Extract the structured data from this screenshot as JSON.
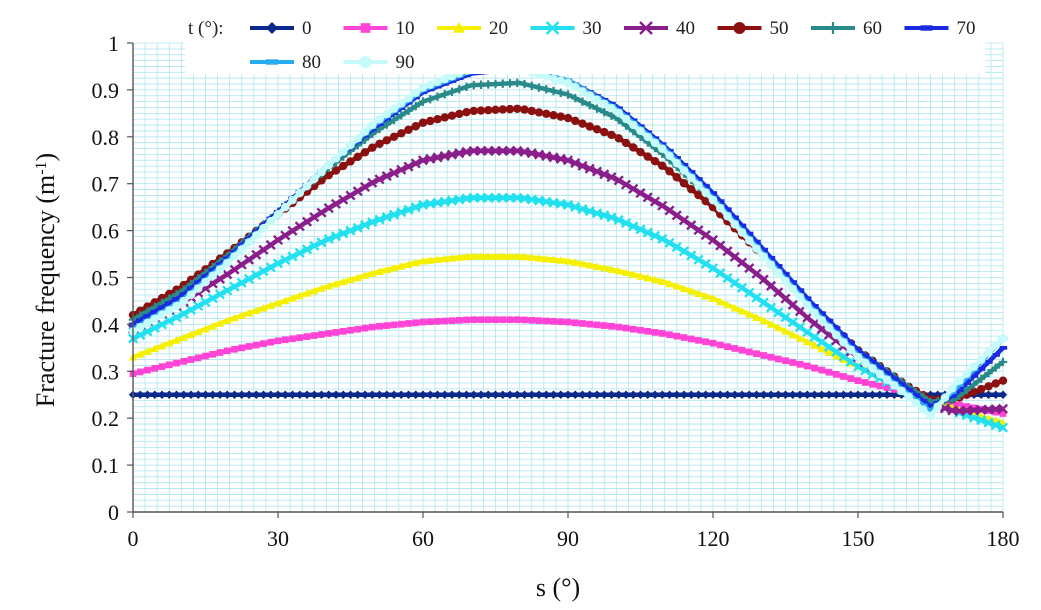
{
  "chart_data": {
    "type": "line",
    "xlabel": "s (°)",
    "ylabel_main": "Fracture frequency (m",
    "ylabel_sup": "-1",
    "ylabel_tail": ")",
    "xlim": [
      0,
      180
    ],
    "ylim": [
      0,
      1
    ],
    "xticks": [
      0,
      30,
      60,
      90,
      120,
      150,
      180
    ],
    "yticks": [
      0,
      0.1,
      0.2,
      0.3,
      0.4,
      0.5,
      0.6,
      0.7,
      0.8,
      0.9,
      1
    ],
    "grid": true,
    "legend_title": "t (°):",
    "legend_position": "top",
    "x": [
      0,
      10,
      20,
      30,
      40,
      50,
      60,
      70,
      80,
      90,
      100,
      110,
      120,
      130,
      140,
      150,
      160,
      165,
      170,
      180
    ],
    "series": [
      {
        "name": "0",
        "color": "#0a2a8a",
        "marker": "diamond",
        "values": [
          0.25,
          0.25,
          0.25,
          0.25,
          0.25,
          0.25,
          0.25,
          0.25,
          0.25,
          0.25,
          0.25,
          0.25,
          0.25,
          0.25,
          0.25,
          0.25,
          0.25,
          0.25,
          0.25,
          0.25
        ]
      },
      {
        "name": "10",
        "color": "#ff44d6",
        "marker": "square",
        "values": [
          0.295,
          0.32,
          0.345,
          0.365,
          0.38,
          0.395,
          0.405,
          0.41,
          0.41,
          0.405,
          0.395,
          0.38,
          0.36,
          0.335,
          0.31,
          0.28,
          0.255,
          0.24,
          0.23,
          0.21
        ]
      },
      {
        "name": "20",
        "color": "#f5f000",
        "marker": "triangle",
        "values": [
          0.33,
          0.37,
          0.41,
          0.445,
          0.48,
          0.51,
          0.535,
          0.545,
          0.545,
          0.535,
          0.515,
          0.49,
          0.455,
          0.41,
          0.36,
          0.31,
          0.26,
          0.24,
          0.22,
          0.19
        ]
      },
      {
        "name": "30",
        "color": "#22e0f0",
        "marker": "x",
        "values": [
          0.37,
          0.42,
          0.475,
          0.53,
          0.58,
          0.62,
          0.655,
          0.67,
          0.67,
          0.655,
          0.625,
          0.58,
          0.52,
          0.45,
          0.38,
          0.31,
          0.255,
          0.23,
          0.215,
          0.18
        ]
      },
      {
        "name": "40",
        "color": "#8a1e8a",
        "marker": "x",
        "values": [
          0.39,
          0.445,
          0.51,
          0.58,
          0.645,
          0.705,
          0.75,
          0.77,
          0.77,
          0.75,
          0.71,
          0.65,
          0.58,
          0.5,
          0.41,
          0.33,
          0.26,
          0.23,
          0.215,
          0.22
        ]
      },
      {
        "name": "50",
        "color": "#8b1010",
        "marker": "circle",
        "values": [
          0.42,
          0.48,
          0.555,
          0.635,
          0.715,
          0.78,
          0.83,
          0.855,
          0.86,
          0.84,
          0.8,
          0.735,
          0.65,
          0.55,
          0.445,
          0.345,
          0.27,
          0.24,
          0.24,
          0.28
        ]
      },
      {
        "name": "60",
        "color": "#2a8a8a",
        "marker": "plus",
        "values": [
          0.41,
          0.47,
          0.55,
          0.64,
          0.73,
          0.81,
          0.875,
          0.91,
          0.915,
          0.89,
          0.84,
          0.76,
          0.665,
          0.555,
          0.445,
          0.345,
          0.27,
          0.235,
          0.24,
          0.32
        ]
      },
      {
        "name": "70",
        "color": "#1a2ae0",
        "marker": "dash",
        "values": [
          0.4,
          0.46,
          0.545,
          0.64,
          0.735,
          0.82,
          0.895,
          0.935,
          0.945,
          0.92,
          0.865,
          0.78,
          0.68,
          0.565,
          0.45,
          0.345,
          0.265,
          0.225,
          0.25,
          0.35
        ]
      },
      {
        "name": "80",
        "color": "#2aaaf0",
        "marker": "dash",
        "values": [
          0.39,
          0.45,
          0.54,
          0.635,
          0.735,
          0.825,
          0.9,
          0.94,
          0.945,
          0.92,
          0.86,
          0.775,
          0.67,
          0.555,
          0.44,
          0.335,
          0.255,
          0.215,
          0.26,
          0.37
        ]
      },
      {
        "name": "90",
        "color": "#c6fbfb",
        "marker": "circle",
        "values": [
          0.385,
          0.445,
          0.535,
          0.635,
          0.735,
          0.83,
          0.905,
          0.945,
          0.945,
          0.915,
          0.855,
          0.77,
          0.665,
          0.55,
          0.435,
          0.33,
          0.25,
          0.205,
          0.27,
          0.37
        ]
      }
    ]
  }
}
